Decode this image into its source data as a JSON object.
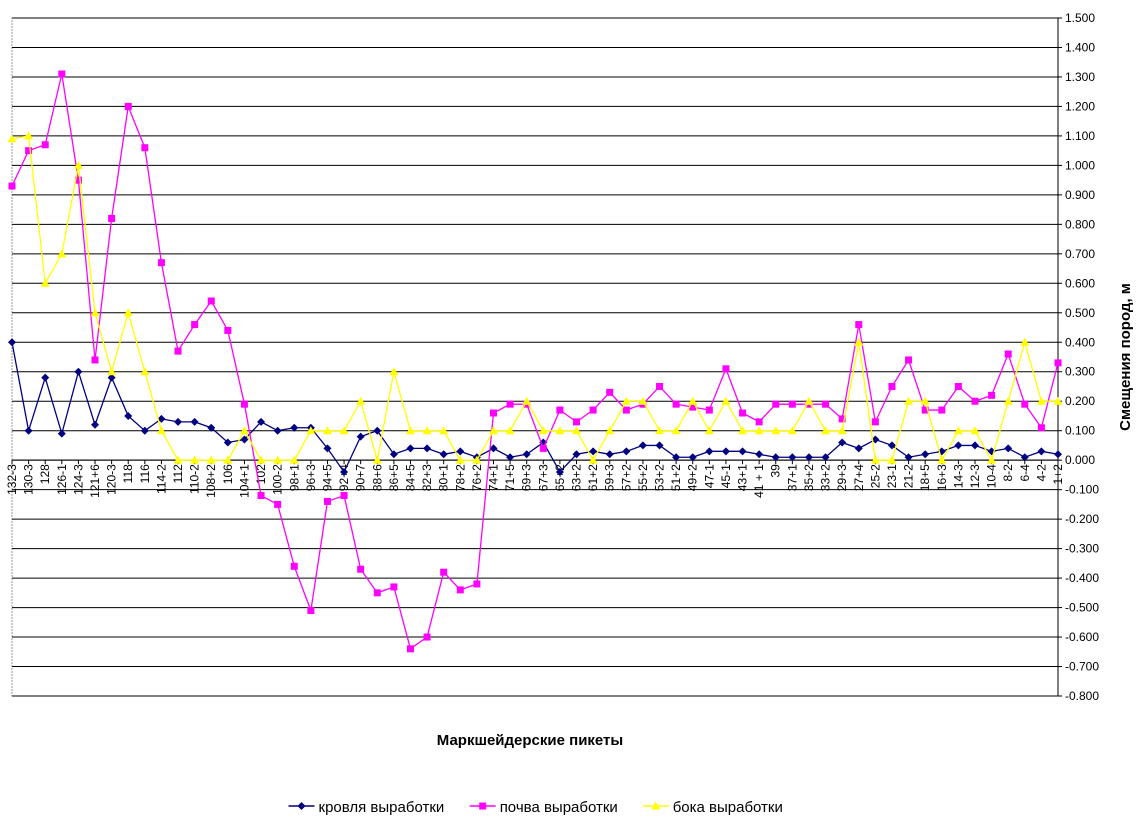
{
  "chart_data": {
    "type": "line",
    "xlabel": "Маркшейдерские пикеты",
    "ylabel": "Смещения пород, м",
    "categories": [
      "132-3",
      "130-3",
      "128",
      "126-1",
      "124-3",
      "121+6",
      "120-3",
      "118",
      "116",
      "114-2",
      "112",
      "110-2",
      "108+2",
      "106",
      "104+1",
      "102",
      "100-2",
      "98+1",
      "96+3",
      "94+5",
      "92+4",
      "90+7",
      "88+6",
      "86+5",
      "84+5",
      "82+3",
      "80+1",
      "78+2",
      "76+2",
      "74+1",
      "71+5",
      "69+3",
      "67+3",
      "65+2",
      "63+2",
      "61+2",
      "59+3",
      "57+2",
      "55+2",
      "53+2",
      "51+2",
      "49+2",
      "47-1",
      "45-1",
      "43+1",
      "41 + 1",
      "39",
      "37+1",
      "35+2",
      "33+2",
      "29+3",
      "27+4",
      "25-2",
      "23-1",
      "21-2",
      "18+5",
      "16+3",
      "14-3",
      "12-3",
      "10-4",
      "8-2",
      "6-4",
      "4-2",
      "1+2"
    ],
    "series": [
      {
        "name": "кровля выработки",
        "color": "#000080",
        "marker": "diamond",
        "values": [
          0.4,
          0.1,
          0.28,
          0.09,
          0.3,
          0.12,
          0.28,
          0.15,
          0.1,
          0.14,
          0.13,
          0.13,
          0.11,
          0.06,
          0.07,
          0.13,
          0.1,
          0.11,
          0.11,
          0.04,
          -0.04,
          0.08,
          0.1,
          0.02,
          0.04,
          0.04,
          0.02,
          0.03,
          0.01,
          0.04,
          0.01,
          0.02,
          0.06,
          -0.04,
          0.02,
          0.03,
          0.02,
          0.03,
          0.05,
          0.05,
          0.01,
          0.01,
          0.03,
          0.03,
          0.03,
          0.02,
          0.01,
          0.01,
          0.01,
          0.01,
          0.06,
          0.04,
          0.07,
          0.05,
          0.01,
          0.02,
          0.03,
          0.05,
          0.05,
          0.03,
          0.04,
          0.01,
          0.03,
          0.02
        ]
      },
      {
        "name": "почва выработки",
        "color": "#ff00ff",
        "marker": "square",
        "values": [
          0.93,
          1.05,
          1.07,
          1.31,
          0.95,
          0.34,
          0.82,
          1.2,
          1.06,
          0.67,
          0.37,
          0.46,
          0.54,
          0.44,
          0.19,
          -0.12,
          -0.15,
          -0.36,
          -0.51,
          -0.14,
          -0.12,
          -0.37,
          -0.45,
          -0.43,
          -0.64,
          -0.6,
          -0.38,
          -0.44,
          -0.42,
          0.16,
          0.19,
          0.19,
          0.04,
          0.17,
          0.13,
          0.17,
          0.23,
          0.17,
          0.19,
          0.25,
          0.19,
          0.18,
          0.17,
          0.31,
          0.16,
          0.13,
          0.19,
          0.19,
          0.19,
          0.19,
          0.14,
          0.46,
          0.13,
          0.25,
          0.34,
          0.17,
          0.17,
          0.25,
          0.2,
          0.22,
          0.36,
          0.19,
          0.11,
          0.33
        ]
      },
      {
        "name": "бока выработки",
        "color": "#ffff00",
        "marker": "triangle",
        "values": [
          1.09,
          1.1,
          0.6,
          0.7,
          1.0,
          0.5,
          0.3,
          0.5,
          0.3,
          0.1,
          0.0,
          0.0,
          0.0,
          0.0,
          0.1,
          0.0,
          0.0,
          0.0,
          0.1,
          0.1,
          0.1,
          0.2,
          0.0,
          0.3,
          0.1,
          0.1,
          0.1,
          0.0,
          0.0,
          0.1,
          0.1,
          0.2,
          0.1,
          0.1,
          0.1,
          0.0,
          0.1,
          0.2,
          0.2,
          0.1,
          0.1,
          0.2,
          0.1,
          0.2,
          0.1,
          0.1,
          0.1,
          0.1,
          0.2,
          0.1,
          0.1,
          0.4,
          0.0,
          0.0,
          0.2,
          0.2,
          0.0,
          0.1,
          0.1,
          0.0,
          0.2,
          0.4,
          0.2,
          0.2
        ]
      }
    ],
    "ylim": [
      -0.8,
      1.5
    ],
    "yticks": [
      {
        "value": 1.5,
        "label": "1.500"
      },
      {
        "value": 1.4,
        "label": "1.400"
      },
      {
        "value": 1.3,
        "label": "1.300"
      },
      {
        "value": 1.2,
        "label": "1.200"
      },
      {
        "value": 1.1,
        "label": "1.100"
      },
      {
        "value": 1.0,
        "label": "1.000"
      },
      {
        "value": 0.9,
        "label": "0.900"
      },
      {
        "value": 0.8,
        "label": "0.800"
      },
      {
        "value": 0.7,
        "label": "0.700"
      },
      {
        "value": 0.6,
        "label": "0.600"
      },
      {
        "value": 0.5,
        "label": "0.500"
      },
      {
        "value": 0.4,
        "label": "0.400"
      },
      {
        "value": 0.3,
        "label": "0.300"
      },
      {
        "value": 0.2,
        "label": "0.200"
      },
      {
        "value": 0.1,
        "label": "0.100"
      },
      {
        "value": 0,
        "label": "0.000"
      },
      {
        "value": -0.1,
        "label": "-0.100"
      },
      {
        "value": -0.2,
        "label": "-0.200"
      },
      {
        "value": -0.3,
        "label": "-0.300"
      },
      {
        "value": -0.4,
        "label": "-0.400"
      },
      {
        "value": -0.5,
        "label": "-0.500"
      },
      {
        "value": -0.6,
        "label": "-0.600"
      },
      {
        "value": -0.7,
        "label": "-0.700"
      },
      {
        "value": -0.8,
        "label": "-0.800"
      }
    ],
    "grid": true,
    "y_axis_side": "right",
    "legend": "bottom"
  }
}
